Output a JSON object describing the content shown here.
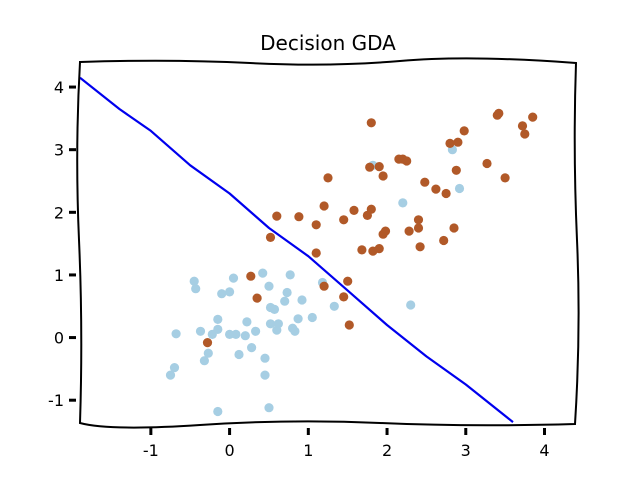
{
  "chart_data": {
    "type": "scatter",
    "title": "Decision GDA",
    "xlabel": "",
    "ylabel": "",
    "xlim": [
      -1.9,
      4.4
    ],
    "ylim": [
      -1.38,
      4.4
    ],
    "xticks": [
      -1,
      0,
      1,
      2,
      3,
      4
    ],
    "yticks": [
      -1,
      0,
      1,
      2,
      3,
      4
    ],
    "grid": false,
    "style": "xkcd",
    "colors": {
      "class_0": "#a6cee3",
      "class_1": "#b15928",
      "boundary": "#0000ee"
    },
    "decision_boundary": {
      "x": [
        -1.9,
        -1.4,
        -1.0,
        -0.5,
        0.0,
        0.5,
        1.0,
        1.5,
        2.0,
        2.5,
        3.0,
        3.6
      ],
      "y": [
        4.15,
        3.65,
        3.3,
        2.75,
        2.3,
        1.75,
        1.3,
        0.75,
        0.2,
        -0.3,
        -0.75,
        -1.35
      ]
    },
    "series": [
      {
        "class": 0,
        "points": [
          [
            -0.75,
            -0.6
          ],
          [
            -0.7,
            -0.48
          ],
          [
            -0.68,
            0.06
          ],
          [
            -0.45,
            0.9
          ],
          [
            -0.43,
            0.78
          ],
          [
            -0.37,
            0.1
          ],
          [
            -0.32,
            -0.37
          ],
          [
            -0.27,
            -0.25
          ],
          [
            -0.22,
            0.05
          ],
          [
            -0.15,
            0.29
          ],
          [
            -0.15,
            0.13
          ],
          [
            -0.1,
            0.7
          ],
          [
            -0.15,
            -1.18
          ],
          [
            0.0,
            0.73
          ],
          [
            0.0,
            0.05
          ],
          [
            0.05,
            0.95
          ],
          [
            0.08,
            0.05
          ],
          [
            0.12,
            -0.27
          ],
          [
            0.2,
            0.03
          ],
          [
            0.22,
            0.25
          ],
          [
            0.28,
            -0.16
          ],
          [
            0.33,
            0.1
          ],
          [
            0.42,
            1.03
          ],
          [
            0.45,
            -0.6
          ],
          [
            0.45,
            -0.33
          ],
          [
            0.5,
            -1.12
          ],
          [
            0.5,
            0.82
          ],
          [
            0.52,
            0.48
          ],
          [
            0.52,
            0.22
          ],
          [
            0.57,
            0.45
          ],
          [
            0.6,
            0.12
          ],
          [
            0.62,
            0.22
          ],
          [
            0.7,
            0.58
          ],
          [
            0.73,
            0.72
          ],
          [
            0.77,
            1.0
          ],
          [
            0.8,
            0.15
          ],
          [
            0.83,
            0.1
          ],
          [
            0.87,
            0.3
          ],
          [
            0.92,
            0.6
          ],
          [
            1.05,
            0.32
          ],
          [
            1.18,
            0.88
          ],
          [
            1.33,
            0.5
          ],
          [
            1.82,
            2.75
          ],
          [
            2.2,
            2.15
          ],
          [
            2.3,
            0.52
          ],
          [
            2.83,
            3.0
          ],
          [
            2.92,
            2.38
          ]
        ]
      },
      {
        "class": 1,
        "points": [
          [
            -0.28,
            -0.08
          ],
          [
            0.27,
            0.98
          ],
          [
            0.35,
            0.63
          ],
          [
            0.52,
            1.6
          ],
          [
            0.6,
            1.94
          ],
          [
            0.88,
            1.93
          ],
          [
            1.1,
            1.35
          ],
          [
            1.1,
            1.8
          ],
          [
            1.2,
            2.1
          ],
          [
            1.2,
            0.82
          ],
          [
            1.25,
            2.55
          ],
          [
            1.45,
            0.65
          ],
          [
            1.45,
            1.88
          ],
          [
            1.5,
            0.9
          ],
          [
            1.52,
            0.2
          ],
          [
            1.58,
            2.03
          ],
          [
            1.68,
            1.4
          ],
          [
            1.75,
            1.95
          ],
          [
            1.8,
            2.05
          ],
          [
            1.78,
            2.72
          ],
          [
            1.8,
            3.43
          ],
          [
            1.82,
            1.38
          ],
          [
            1.9,
            1.42
          ],
          [
            1.9,
            2.73
          ],
          [
            1.95,
            1.65
          ],
          [
            1.95,
            2.58
          ],
          [
            1.98,
            1.7
          ],
          [
            2.15,
            2.85
          ],
          [
            2.2,
            2.85
          ],
          [
            2.25,
            2.82
          ],
          [
            2.28,
            1.7
          ],
          [
            2.4,
            1.75
          ],
          [
            2.4,
            1.88
          ],
          [
            2.42,
            1.45
          ],
          [
            2.48,
            2.48
          ],
          [
            2.62,
            2.37
          ],
          [
            2.72,
            1.55
          ],
          [
            2.75,
            2.3
          ],
          [
            2.8,
            3.1
          ],
          [
            2.85,
            1.75
          ],
          [
            2.88,
            2.67
          ],
          [
            2.9,
            3.12
          ],
          [
            2.98,
            3.3
          ],
          [
            3.27,
            2.78
          ],
          [
            3.4,
            3.55
          ],
          [
            3.42,
            3.58
          ],
          [
            3.5,
            2.55
          ],
          [
            3.72,
            3.38
          ],
          [
            3.75,
            3.25
          ],
          [
            3.85,
            3.52
          ]
        ]
      }
    ]
  }
}
